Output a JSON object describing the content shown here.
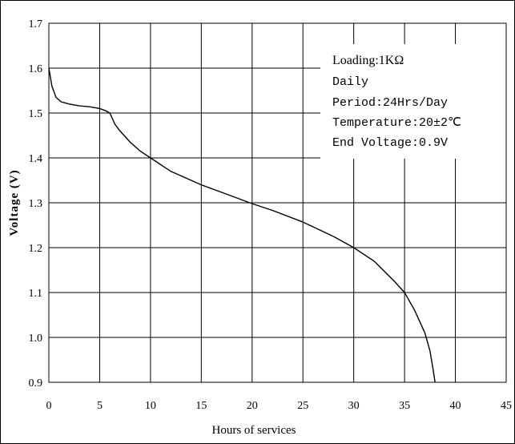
{
  "chart_data": {
    "type": "line",
    "xlabel": "Hours of services",
    "ylabel": "Voltage (V)",
    "xlim": [
      0,
      45
    ],
    "ylim": [
      0.9,
      1.7
    ],
    "xticks": [
      "0",
      "5",
      "10",
      "15",
      "20",
      "25",
      "30",
      "35",
      "40",
      "45"
    ],
    "yticks": [
      "0.9",
      "1.0",
      "1.1",
      "1.2",
      "1.3",
      "1.4",
      "1.5",
      "1.6",
      "1.7"
    ],
    "grid": true,
    "annotations": [
      "Loading:1KΩ",
      "Daily",
      "Period:24Hrs/Day",
      "Temperature:20±2℃",
      "End Voltage:0.9V"
    ],
    "series": [
      {
        "x": [
          0,
          0.3,
          0.7,
          1.2,
          2,
          3,
          4,
          5,
          5.6,
          6,
          6.5,
          7,
          8,
          9,
          10,
          12,
          15,
          18,
          20,
          22,
          25,
          28,
          30,
          32,
          34,
          35,
          36,
          37,
          37.5,
          37.8,
          38
        ],
        "y": [
          1.6,
          1.56,
          1.535,
          1.525,
          1.52,
          1.516,
          1.514,
          1.51,
          1.505,
          1.5,
          1.475,
          1.46,
          1.435,
          1.415,
          1.4,
          1.37,
          1.34,
          1.315,
          1.298,
          1.283,
          1.257,
          1.225,
          1.2,
          1.17,
          1.125,
          1.1,
          1.06,
          1.01,
          0.97,
          0.93,
          0.9
        ]
      }
    ]
  }
}
